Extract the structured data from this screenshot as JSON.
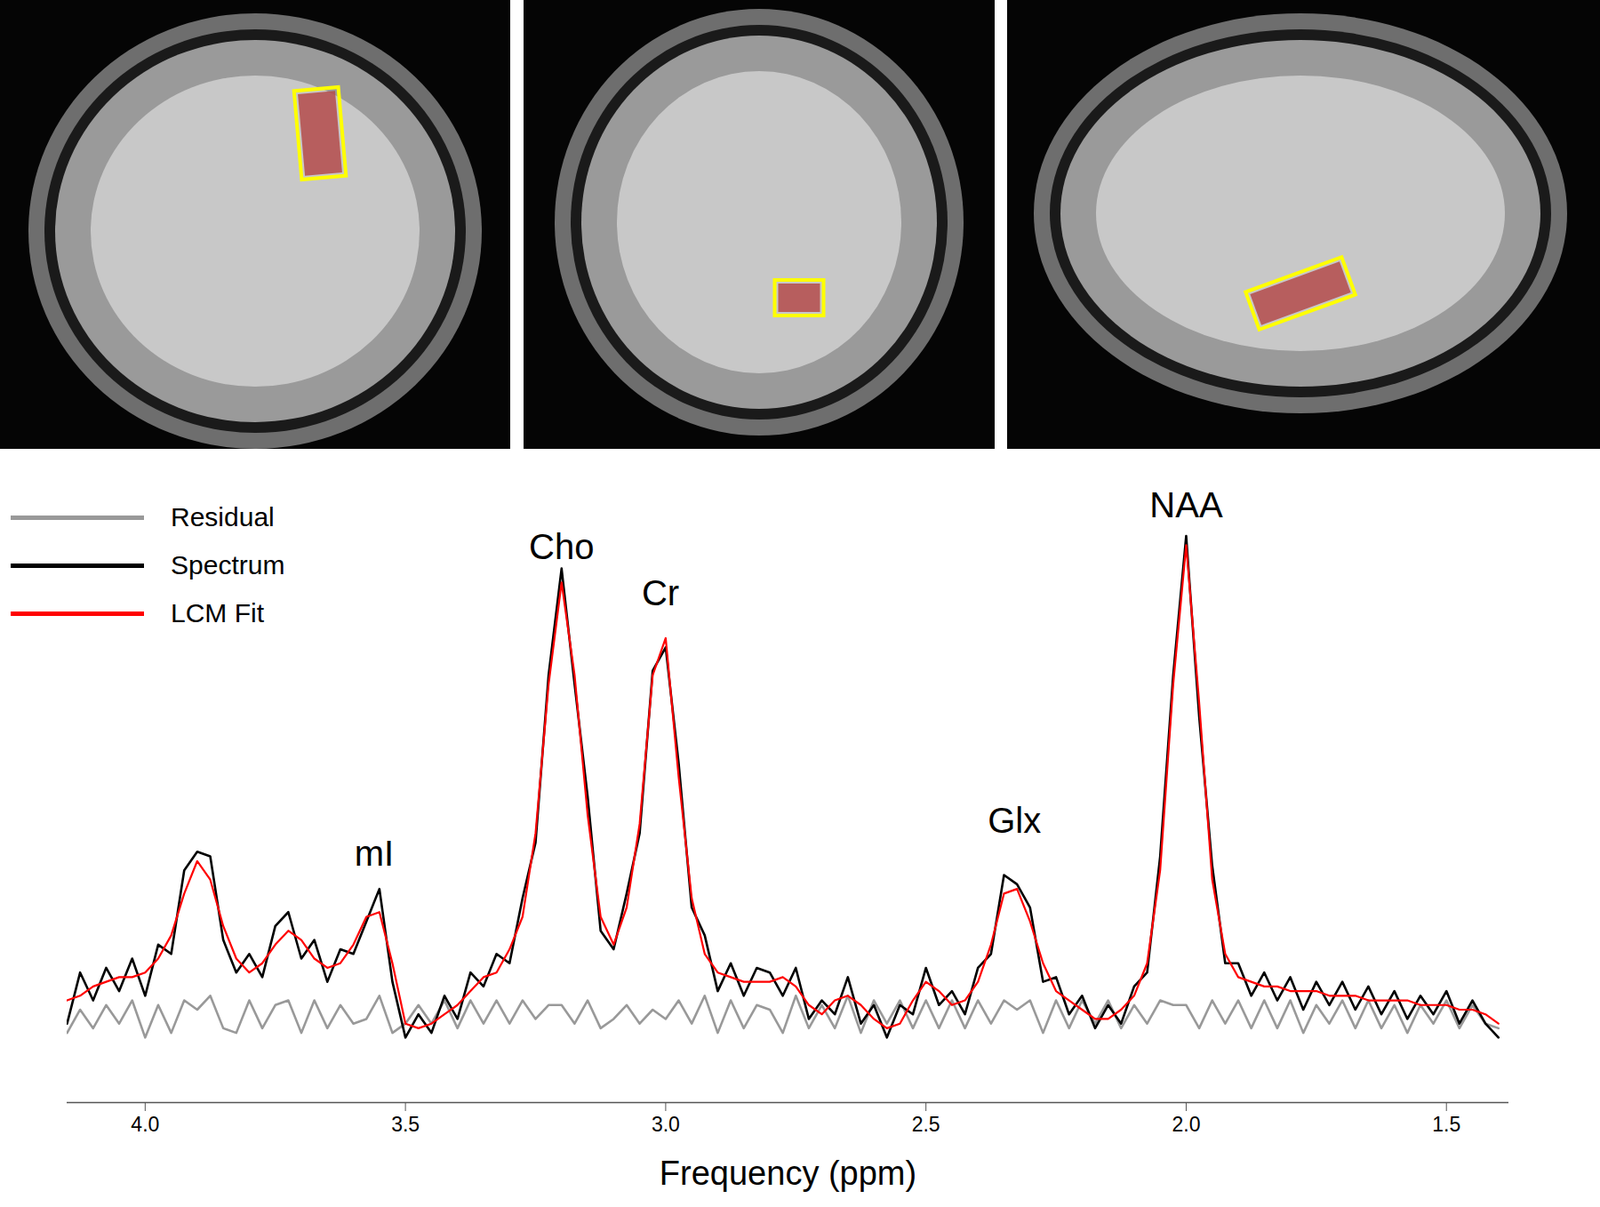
{
  "chart_data": {
    "type": "line",
    "x_label": "Frequency (ppm)",
    "xlim": [
      4.15,
      1.38
    ],
    "xticks": [
      {
        "value": 4,
        "label": "4.0"
      },
      {
        "value": 3.5,
        "label": "3.5"
      },
      {
        "value": 3,
        "label": "3.0"
      },
      {
        "value": 2.5,
        "label": "2.5"
      },
      {
        "value": 2,
        "label": "2.0"
      },
      {
        "value": 1.5,
        "label": "1.5"
      }
    ],
    "ylim": [
      -20,
      113
    ],
    "tick_labels": "x",
    "legend": "upper left",
    "x": [
      4.15,
      4.125,
      4.1,
      4.075,
      4.05,
      4.025,
      4.0,
      3.975,
      3.95,
      3.925,
      3.9,
      3.875,
      3.85,
      3.825,
      3.8,
      3.775,
      3.75,
      3.725,
      3.7,
      3.675,
      3.65,
      3.625,
      3.6,
      3.575,
      3.55,
      3.525,
      3.5,
      3.475,
      3.45,
      3.425,
      3.4,
      3.375,
      3.35,
      3.325,
      3.3,
      3.275,
      3.25,
      3.225,
      3.2,
      3.175,
      3.15,
      3.125,
      3.1,
      3.075,
      3.05,
      3.025,
      3.0,
      2.975,
      2.95,
      2.925,
      2.9,
      2.875,
      2.85,
      2.825,
      2.8,
      2.775,
      2.75,
      2.725,
      2.7,
      2.675,
      2.65,
      2.625,
      2.6,
      2.575,
      2.55,
      2.525,
      2.5,
      2.475,
      2.45,
      2.425,
      2.4,
      2.375,
      2.35,
      2.325,
      2.3,
      2.275,
      2.25,
      2.225,
      2.2,
      2.175,
      2.15,
      2.125,
      2.1,
      2.075,
      2.05,
      2.025,
      2.0,
      1.975,
      1.95,
      1.925,
      1.9,
      1.875,
      1.85,
      1.825,
      1.8,
      1.775,
      1.75,
      1.725,
      1.7,
      1.675,
      1.65,
      1.625,
      1.6,
      1.575,
      1.55,
      1.525,
      1.5,
      1.475,
      1.45,
      1.425,
      1.4
    ],
    "series": [
      {
        "name": "Residual",
        "color": "#999999",
        "values": [
          -5,
          0,
          -4,
          1,
          -3,
          2,
          -6,
          1,
          -5,
          2,
          0,
          3,
          -4,
          -5,
          2,
          -4,
          1,
          2,
          -5,
          2,
          -4,
          1,
          -3,
          -2,
          3,
          -5,
          -3,
          1,
          -3,
          2,
          -4,
          2,
          -3,
          2,
          -3,
          2,
          -2,
          1,
          1,
          -3,
          2,
          -4,
          -2,
          1,
          -3,
          0,
          -2,
          2,
          -3,
          3,
          -5,
          2,
          -4,
          1,
          0,
          -5,
          3,
          -4,
          1,
          -4,
          3,
          -5,
          2,
          -3,
          2,
          -4,
          2,
          -4,
          2,
          -4,
          2,
          -3,
          2,
          0,
          2,
          -5,
          2,
          -4,
          2,
          -3,
          2,
          -4,
          1,
          -3,
          2,
          1,
          1,
          -4,
          2,
          -3,
          2,
          -4,
          2,
          -4,
          2,
          -5,
          1,
          -3,
          2,
          -4,
          2,
          -4,
          1,
          -5,
          1,
          -3,
          2,
          -4,
          1,
          -3,
          -4
        ]
      },
      {
        "name": "Spectrum",
        "color": "#000000",
        "values": [
          -3,
          8,
          2,
          9,
          4,
          11,
          3,
          14,
          12,
          30,
          34,
          33,
          15,
          8,
          12,
          7,
          18,
          21,
          11,
          15,
          6,
          13,
          12,
          19,
          26,
          6,
          -6,
          -1,
          -5,
          3,
          -2,
          8,
          5,
          12,
          10,
          24,
          36,
          72,
          95,
          70,
          46,
          17,
          13,
          25,
          38,
          73,
          78,
          53,
          22,
          16,
          4,
          10,
          3,
          9,
          8,
          3,
          9,
          -2,
          2,
          -1,
          7,
          -3,
          1,
          -6,
          1,
          -1,
          9,
          1,
          4,
          -1,
          9,
          12,
          29,
          27,
          22,
          6,
          7,
          -1,
          3,
          -4,
          1,
          -3,
          5,
          8,
          33,
          72,
          102,
          63,
          31,
          10,
          10,
          3,
          8,
          2,
          7,
          0,
          6,
          1,
          6,
          0,
          5,
          -1,
          4,
          -2,
          3,
          -1,
          4,
          -3,
          2,
          -3,
          -6
        ]
      },
      {
        "name": "LCM Fit",
        "color": "#ff0000",
        "values": [
          2,
          3,
          5,
          6,
          7,
          7,
          8,
          11,
          16,
          25,
          32,
          28,
          18,
          11,
          8,
          10,
          14,
          17,
          15,
          11,
          9,
          10,
          14,
          20,
          21,
          10,
          -3,
          -4,
          -3,
          -1,
          1,
          4,
          7,
          8,
          13,
          20,
          38,
          70,
          92,
          72,
          42,
          20,
          14,
          22,
          40,
          72,
          80,
          50,
          24,
          12,
          8,
          7,
          6,
          6,
          6,
          7,
          5,
          1,
          -1,
          2,
          3,
          1,
          -2,
          -4,
          -3,
          2,
          6,
          4,
          1,
          2,
          6,
          14,
          25,
          26,
          19,
          10,
          4,
          2,
          0,
          -2,
          -2,
          0,
          3,
          10,
          30,
          70,
          100,
          66,
          28,
          12,
          7,
          6,
          5,
          5,
          4,
          4,
          4,
          3,
          3,
          3,
          2,
          2,
          2,
          2,
          1,
          1,
          1,
          0,
          0,
          -1,
          -3
        ]
      }
    ],
    "annotations": [
      {
        "text": "mI",
        "x": 3.56,
        "y": 31
      },
      {
        "text": "Cho",
        "x": 3.2,
        "y": 97
      },
      {
        "text": "Cr",
        "x": 3.01,
        "y": 87
      },
      {
        "text": "Glx",
        "x": 2.33,
        "y": 38
      },
      {
        "text": "NAA",
        "x": 2.0,
        "y": 106
      }
    ]
  }
}
